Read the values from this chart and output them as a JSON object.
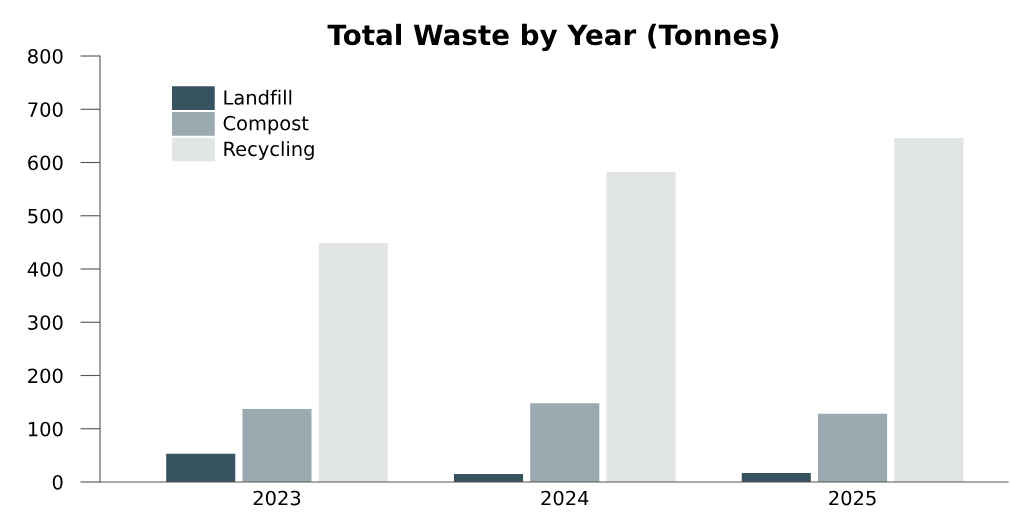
{
  "chart_data": {
    "type": "bar",
    "title": "Total Waste by Year (Tonnes)",
    "categories": [
      "2023",
      "2024",
      "2025"
    ],
    "series": [
      {
        "name": "Landfill",
        "color": "#37535f",
        "values": [
          53,
          15,
          17
        ]
      },
      {
        "name": "Compost",
        "color": "#9aaab0",
        "values": [
          137,
          148,
          128
        ]
      },
      {
        "name": "Recycling",
        "color": "#e1e5e6",
        "values": [
          449,
          582,
          646
        ]
      }
    ],
    "ylim": [
      0,
      800
    ],
    "yticks": [
      0,
      100,
      200,
      300,
      400,
      500,
      600,
      700,
      800
    ],
    "grid": false,
    "legend": "top left"
  }
}
